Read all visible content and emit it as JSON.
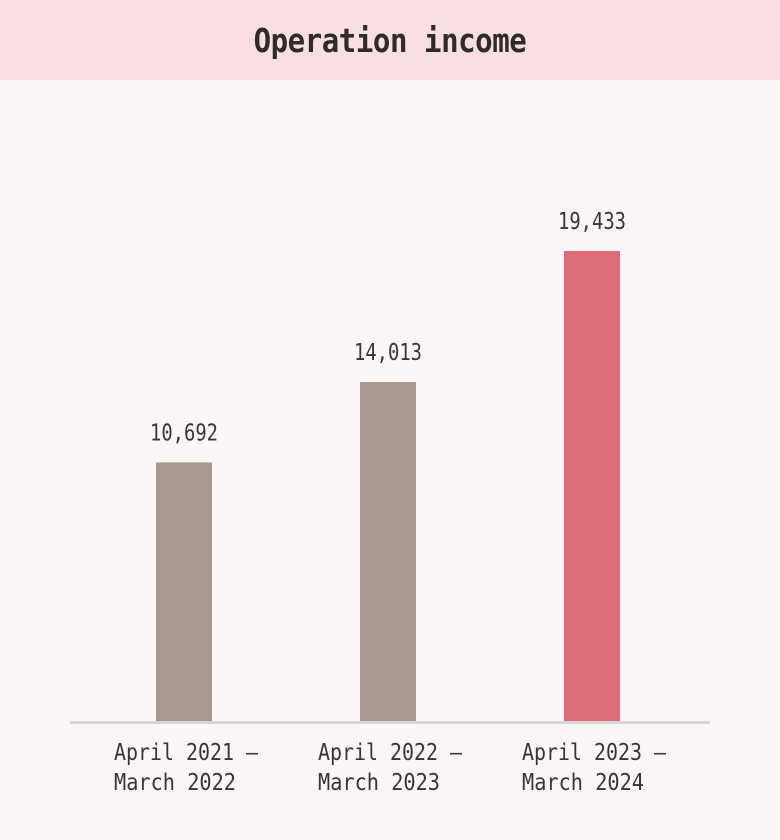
{
  "header": {
    "title": "Operation income"
  },
  "colors": {
    "header_bg": "#f9dfe1",
    "page_bg": "#fcf5f5",
    "bar_default": "#a89a91",
    "bar_highlight": "#dc6c77",
    "baseline": "#d9d4d4"
  },
  "chart_data": {
    "type": "bar",
    "title": "Operation income",
    "xlabel": "",
    "ylabel": "",
    "grid": false,
    "legend": "none",
    "ylim": [
      0,
      26500
    ],
    "categories": [
      [
        "April 2021 –",
        "March 2022"
      ],
      [
        "April 2022 –",
        "March 2023"
      ],
      [
        "April 2023 –",
        "March 2024"
      ]
    ],
    "values": [
      10692,
      14013,
      19433
    ],
    "value_labels": [
      "10,692",
      "14,013",
      "19,433"
    ],
    "highlight_index": 2
  }
}
